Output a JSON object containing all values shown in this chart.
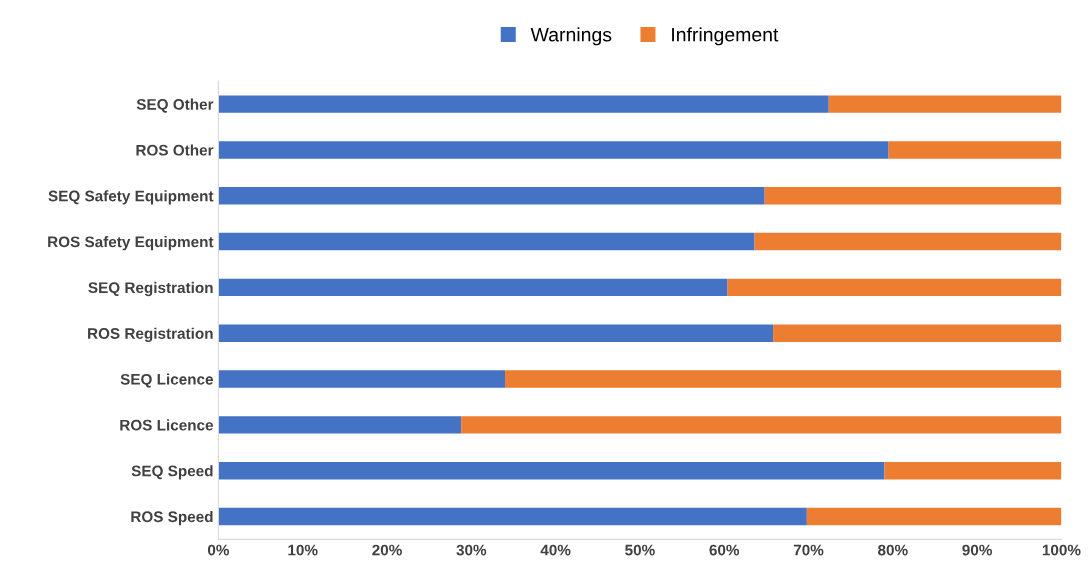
{
  "chart_data": {
    "type": "bar",
    "orientation": "horizontal",
    "stacked": true,
    "categories": [
      "SEQ Other",
      "ROS Other",
      "SEQ Safety Equipment",
      "ROS Safety Equipment",
      "SEQ Registration",
      "ROS Registration",
      "SEQ Licence",
      "ROS Licence",
      "SEQ Speed",
      "ROS Speed"
    ],
    "series": [
      {
        "name": "Warnings",
        "color": "#4472c4",
        "values": [
          72.4,
          79.5,
          64.8,
          63.6,
          60.4,
          65.8,
          34.0,
          28.8,
          79.0,
          69.8
        ]
      },
      {
        "name": "Infringement",
        "color": "#ed7d31",
        "values": [
          27.6,
          20.5,
          35.2,
          36.4,
          39.6,
          34.2,
          66.0,
          71.2,
          21.0,
          30.2
        ]
      }
    ],
    "xlim": [
      0,
      100
    ],
    "xticks": [
      {
        "value": 0,
        "label": "0%"
      },
      {
        "value": 10,
        "label": "10%"
      },
      {
        "value": 20,
        "label": "20%"
      },
      {
        "value": 30,
        "label": "30%"
      },
      {
        "value": 40,
        "label": "40%"
      },
      {
        "value": 50,
        "label": "50%"
      },
      {
        "value": 60,
        "label": "60%"
      },
      {
        "value": 70,
        "label": "70%"
      },
      {
        "value": 80,
        "label": "80%"
      },
      {
        "value": 90,
        "label": "90%"
      },
      {
        "value": 100,
        "label": "100%"
      }
    ],
    "legend": "top",
    "grid": false
  }
}
